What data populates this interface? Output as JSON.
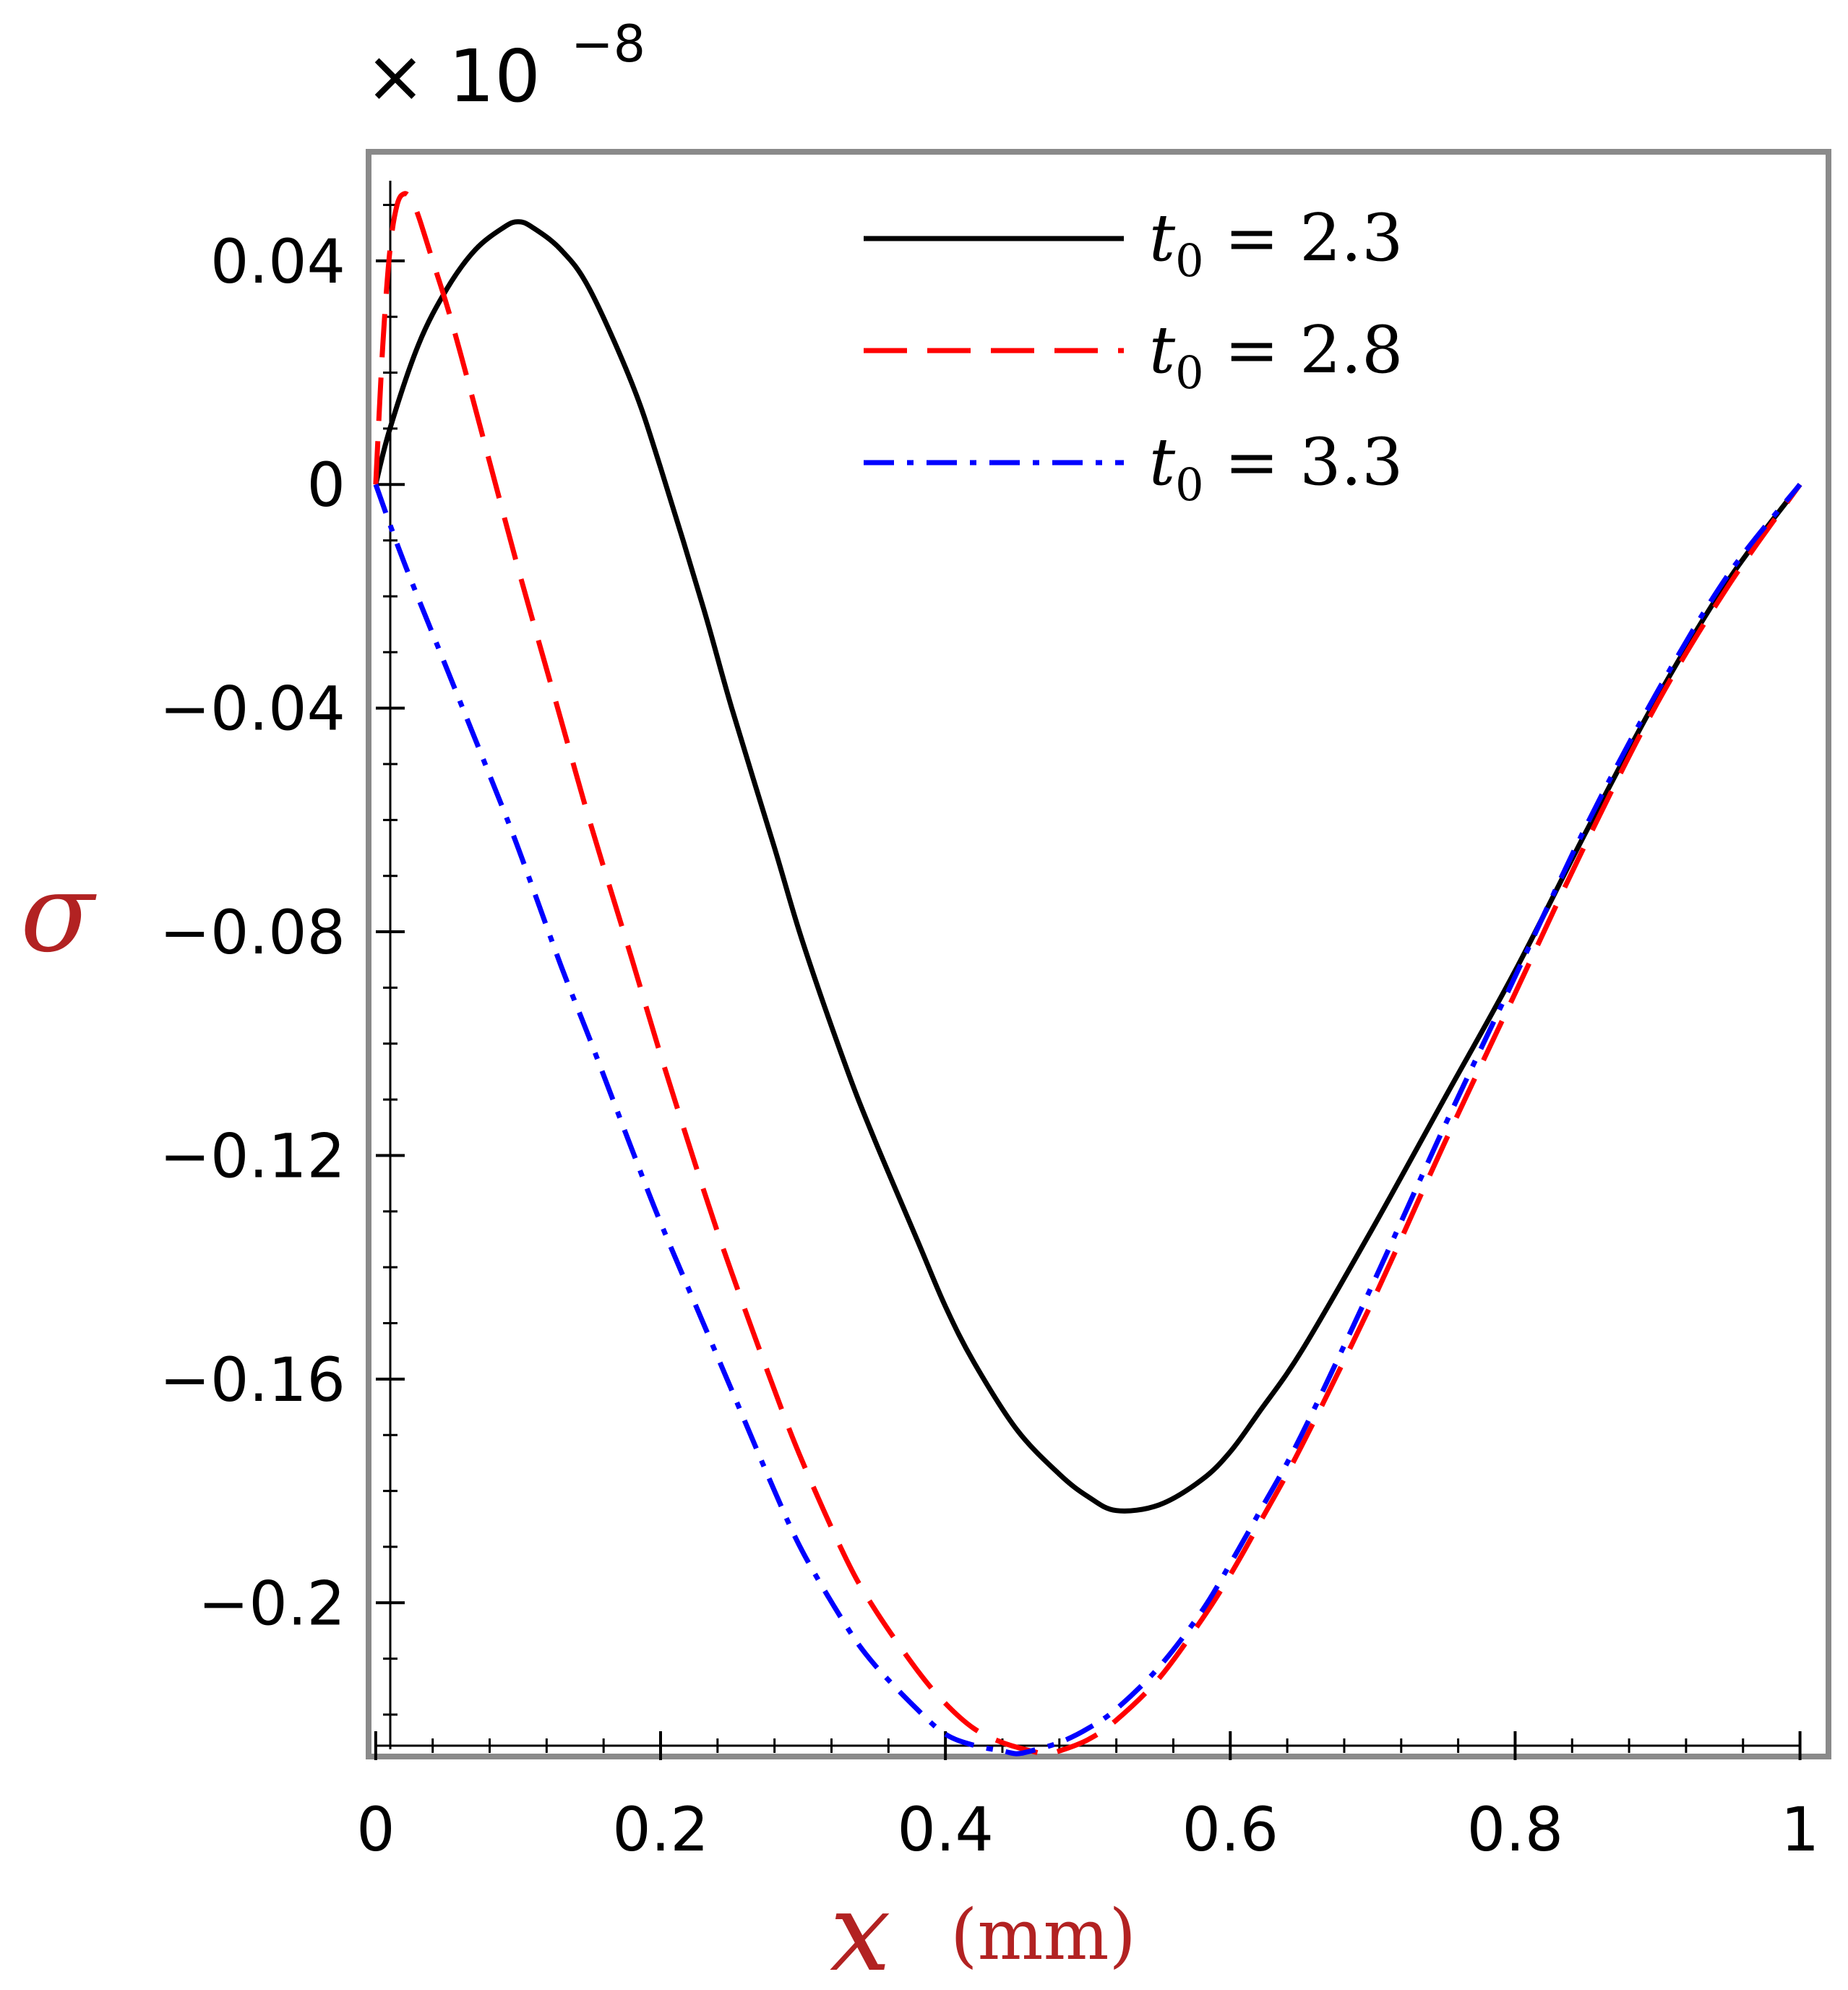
{
  "chart_data": {
    "type": "line",
    "title": "",
    "xlabel": "x",
    "xunit": "(mm)",
    "ylabel": "σ",
    "multiplier": {
      "base": "× 10",
      "exponent": "−8"
    },
    "xlim": [
      -0.005,
      1.02
    ],
    "ylim": [
      -0.2275,
      0.0595
    ],
    "xticks": [
      0,
      0.2,
      0.4,
      0.6,
      0.8,
      1
    ],
    "xtick_labels": [
      "0",
      "0.2",
      "0.4",
      "0.6",
      "0.8",
      "1"
    ],
    "yticks": [
      0.04,
      0,
      -0.04,
      -0.08,
      -0.12,
      -0.16,
      -0.2
    ],
    "ytick_labels": [
      "0.04",
      "0",
      "−0.04",
      "−0.08",
      "−0.12",
      "−0.16",
      "−0.2"
    ],
    "legend_position": "top-right",
    "series": [
      {
        "name": "t0 = 2.3",
        "legend_label": {
          "var": "t",
          "sub": "0",
          "rest": " = 2.3"
        },
        "color": "#000000",
        "style": "solid",
        "x": [
          0,
          0.01,
          0.03,
          0.05,
          0.07,
          0.09,
          0.1,
          0.11,
          0.13,
          0.15,
          0.18,
          0.2,
          0.23,
          0.25,
          0.28,
          0.3,
          0.33,
          0.35,
          0.38,
          0.4,
          0.42,
          0.45,
          0.48,
          0.5,
          0.52,
          0.55,
          0.58,
          0.6,
          0.62,
          0.65,
          0.7,
          0.75,
          0.8,
          0.85,
          0.9,
          0.95,
          1
        ],
        "y": [
          0,
          0.01,
          0.025,
          0.035,
          0.042,
          0.046,
          0.047,
          0.046,
          0.042,
          0.035,
          0.018,
          0.003,
          -0.022,
          -0.04,
          -0.065,
          -0.082,
          -0.104,
          -0.117,
          -0.135,
          -0.147,
          -0.157,
          -0.169,
          -0.177,
          -0.181,
          -0.1835,
          -0.1825,
          -0.178,
          -0.173,
          -0.166,
          -0.155,
          -0.133,
          -0.11,
          -0.087,
          -0.062,
          -0.038,
          -0.017,
          0
        ]
      },
      {
        "name": "t0 = 2.8",
        "legend_label": {
          "var": "t",
          "sub": "0",
          "rest": " = 2.8"
        },
        "color": "#ff0000",
        "style": "dashed",
        "x": [
          0,
          0.005,
          0.01,
          0.015,
          0.02,
          0.025,
          0.03,
          0.04,
          0.05,
          0.06,
          0.08,
          0.1,
          0.13,
          0.15,
          0.18,
          0.2,
          0.23,
          0.25,
          0.28,
          0.3,
          0.33,
          0.35,
          0.38,
          0.4,
          0.42,
          0.44,
          0.46,
          0.47,
          0.48,
          0.5,
          0.52,
          0.55,
          0.58,
          0.6,
          0.62,
          0.65,
          0.7,
          0.75,
          0.8,
          0.85,
          0.9,
          0.95,
          1
        ],
        "y": [
          0,
          0.025,
          0.042,
          0.05,
          0.052,
          0.051,
          0.048,
          0.04,
          0.032,
          0.023,
          0.004,
          -0.015,
          -0.042,
          -0.06,
          -0.085,
          -0.102,
          -0.126,
          -0.141,
          -0.162,
          -0.175,
          -0.192,
          -0.201,
          -0.212,
          -0.218,
          -0.2225,
          -0.225,
          -0.2265,
          -0.227,
          -0.2265,
          -0.2245,
          -0.221,
          -0.2135,
          -0.203,
          -0.195,
          -0.186,
          -0.172,
          -0.146,
          -0.118,
          -0.091,
          -0.064,
          -0.039,
          -0.018,
          0
        ]
      },
      {
        "name": "t0 = 3.3",
        "legend_label": {
          "var": "t",
          "sub": "0",
          "rest": " = 3.3"
        },
        "color": "#0000ff",
        "style": "dashdot",
        "x": [
          0,
          0.02,
          0.05,
          0.08,
          0.1,
          0.13,
          0.15,
          0.18,
          0.2,
          0.23,
          0.25,
          0.28,
          0.3,
          0.33,
          0.35,
          0.38,
          0.4,
          0.42,
          0.44,
          0.45,
          0.46,
          0.48,
          0.5,
          0.52,
          0.55,
          0.58,
          0.6,
          0.62,
          0.65,
          0.7,
          0.75,
          0.8,
          0.85,
          0.9,
          0.95,
          1
        ],
        "y": [
          0,
          -0.014,
          -0.033,
          -0.052,
          -0.065,
          -0.086,
          -0.099,
          -0.119,
          -0.132,
          -0.15,
          -0.162,
          -0.18,
          -0.191,
          -0.204,
          -0.211,
          -0.219,
          -0.2235,
          -0.2255,
          -0.2265,
          -0.227,
          -0.2265,
          -0.225,
          -0.2225,
          -0.219,
          -0.2115,
          -0.2015,
          -0.193,
          -0.184,
          -0.17,
          -0.143,
          -0.115,
          -0.088,
          -0.061,
          -0.037,
          -0.016,
          0
        ]
      }
    ]
  }
}
